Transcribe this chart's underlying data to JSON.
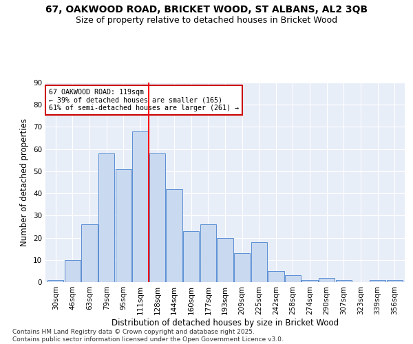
{
  "title1": "67, OAKWOOD ROAD, BRICKET WOOD, ST ALBANS, AL2 3QB",
  "title2": "Size of property relative to detached houses in Bricket Wood",
  "xlabel": "Distribution of detached houses by size in Bricket Wood",
  "ylabel": "Number of detached properties",
  "categories": [
    "30sqm",
    "46sqm",
    "63sqm",
    "79sqm",
    "95sqm",
    "111sqm",
    "128sqm",
    "144sqm",
    "160sqm",
    "177sqm",
    "193sqm",
    "209sqm",
    "225sqm",
    "242sqm",
    "258sqm",
    "274sqm",
    "290sqm",
    "307sqm",
    "323sqm",
    "339sqm",
    "356sqm"
  ],
  "values": [
    1,
    10,
    26,
    58,
    51,
    68,
    58,
    42,
    23,
    26,
    20,
    13,
    18,
    5,
    3,
    1,
    2,
    1,
    0,
    1,
    1
  ],
  "bar_color": "#c9d9f0",
  "bar_edge_color": "#5b8fd4",
  "red_line_index": 5.5,
  "annotation_line1": "67 OAKWOOD ROAD: 119sqm",
  "annotation_line2": "← 39% of detached houses are smaller (165)",
  "annotation_line3": "61% of semi-detached houses are larger (261) →",
  "annotation_box_color": "#ffffff",
  "annotation_box_edge": "#cc0000",
  "ylim": [
    0,
    90
  ],
  "yticks": [
    0,
    10,
    20,
    30,
    40,
    50,
    60,
    70,
    80,
    90
  ],
  "bg_color": "#e8eef8",
  "footer": "Contains HM Land Registry data © Crown copyright and database right 2025.\nContains public sector information licensed under the Open Government Licence v3.0.",
  "title_fontsize": 10,
  "subtitle_fontsize": 9,
  "axis_label_fontsize": 8.5,
  "tick_fontsize": 7.5,
  "footer_fontsize": 6.5
}
